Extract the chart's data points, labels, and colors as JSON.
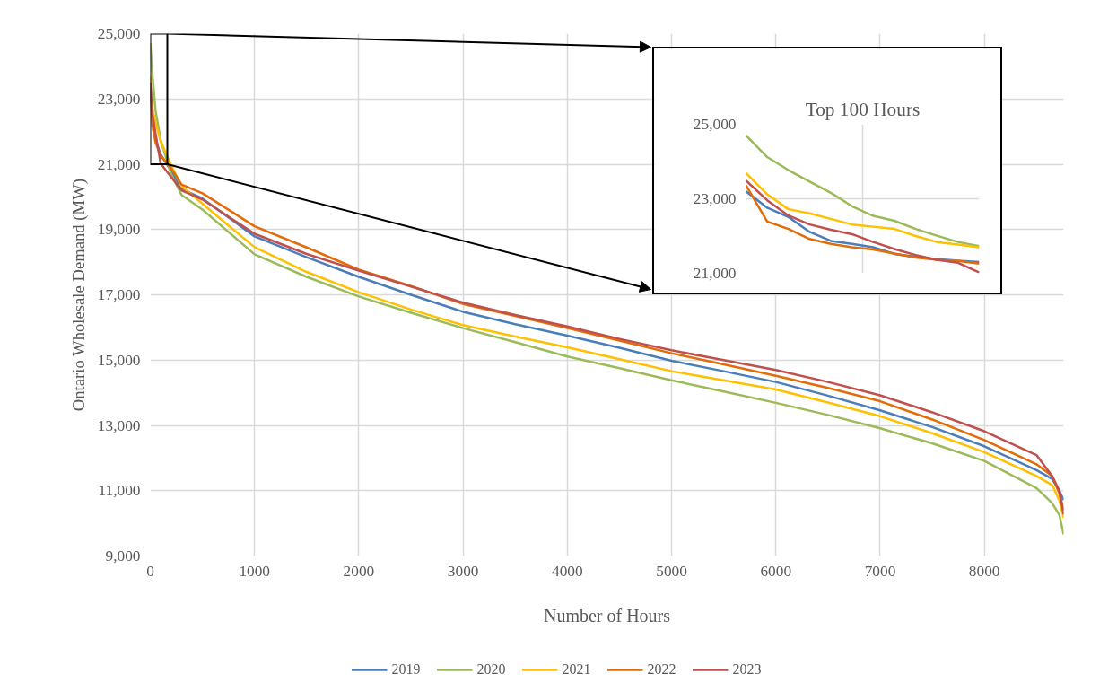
{
  "chart_data": [
    {
      "type": "line",
      "xlabel": "Number of Hours",
      "ylabel": "Ontario Wholesale Demand (MW)",
      "x": [
        0,
        20,
        50,
        100,
        200,
        300,
        500,
        1000,
        1500,
        2000,
        2500,
        3000,
        3500,
        4000,
        4500,
        5000,
        5500,
        6000,
        6500,
        7000,
        7500,
        8000,
        8500,
        8650,
        8720,
        8760
      ],
      "series": [
        {
          "name": "2019",
          "color": "#4a7ebb",
          "values": [
            23200,
            22510,
            21750,
            21300,
            20790,
            20240,
            19950,
            18790,
            18150,
            17550,
            17000,
            16480,
            16100,
            15750,
            15380,
            14980,
            14660,
            14330,
            13910,
            13460,
            12950,
            12360,
            11630,
            11360,
            10990,
            10710
          ]
        },
        {
          "name": "2020",
          "color": "#9bbb59",
          "values": [
            24700,
            23770,
            22650,
            21730,
            20700,
            20060,
            19610,
            18240,
            17550,
            16950,
            16450,
            15980,
            15550,
            15110,
            14750,
            14380,
            14040,
            13690,
            13320,
            12910,
            12450,
            11910,
            11080,
            10620,
            10250,
            9660
          ]
        },
        {
          "name": "2021",
          "color": "#ffc000",
          "values": [
            23700,
            22720,
            22280,
            21700,
            20970,
            20330,
            19790,
            18460,
            17700,
            17080,
            16550,
            16070,
            15720,
            15390,
            15030,
            14660,
            14380,
            14100,
            13700,
            13280,
            12760,
            12180,
            11450,
            11170,
            10700,
            10160
          ]
        },
        {
          "name": "2022",
          "color": "#e36c09",
          "values": [
            23300,
            22190,
            21670,
            21260,
            20880,
            20380,
            20110,
            19100,
            18450,
            17770,
            17270,
            16720,
            16350,
            15980,
            15600,
            15210,
            14870,
            14520,
            14150,
            13740,
            13180,
            12550,
            11810,
            11450,
            10900,
            10400
          ]
        },
        {
          "name": "2023",
          "color": "#c0504d",
          "values": [
            23500,
            22550,
            21950,
            21020,
            20610,
            20200,
            19920,
            18870,
            18250,
            17740,
            17250,
            16760,
            16380,
            16030,
            15650,
            15300,
            15000,
            14700,
            14330,
            13920,
            13400,
            12820,
            12090,
            11450,
            10990,
            10270
          ]
        }
      ],
      "xlim": [
        0,
        8760
      ],
      "xticks": [
        0,
        1000,
        2000,
        3000,
        4000,
        5000,
        6000,
        7000,
        8000
      ],
      "ylim": [
        9000,
        25000
      ],
      "yticks": [
        {
          "value": 9000,
          "label": "9,000"
        },
        {
          "value": 11000,
          "label": "11,000"
        },
        {
          "value": 13000,
          "label": "13,000"
        },
        {
          "value": 15000,
          "label": "15,000"
        },
        {
          "value": 17000,
          "label": "17,000"
        },
        {
          "value": 19000,
          "label": "19,000"
        },
        {
          "value": 21000,
          "label": "21,000"
        },
        {
          "value": 23000,
          "label": "23,000"
        },
        {
          "value": 25000,
          "label": "25,000"
        }
      ],
      "grid": true,
      "legend": "bottom",
      "line_style": "solid"
    },
    {
      "type": "line",
      "title": "Top 100 Hours",
      "categories": [
        null,
        null,
        null,
        null,
        null,
        null,
        null,
        null,
        null,
        null,
        null,
        null
      ],
      "series": [
        {
          "color": "#4a7ebb",
          "values": [
            23200,
            22760,
            22510,
            22110,
            21870,
            21790,
            21700,
            21520,
            21440,
            21380,
            21340,
            21300
          ]
        },
        {
          "color": "#9bbb59",
          "values": [
            24700,
            24120,
            23770,
            23460,
            23160,
            22800,
            22540,
            22410,
            22190,
            22010,
            21840,
            21730
          ]
        },
        {
          "color": "#ffc000",
          "values": [
            23690,
            23120,
            22720,
            22610,
            22460,
            22310,
            22250,
            22190,
            22000,
            21840,
            21770,
            21700
          ]
        },
        {
          "color": "#e36c09",
          "values": [
            23360,
            22390,
            22190,
            21920,
            21790,
            21700,
            21640,
            21530,
            21420,
            21360,
            21330,
            21260
          ]
        },
        {
          "color": "#c0504d",
          "values": [
            23490,
            22960,
            22550,
            22310,
            22170,
            22050,
            21840,
            21650,
            21490,
            21360,
            21280,
            21020
          ]
        }
      ],
      "ylim": [
        21000,
        25000
      ],
      "yticks": [
        {
          "value": 21000,
          "label": "21,000"
        },
        {
          "value": 23000,
          "label": "23,000"
        },
        {
          "value": 25000,
          "label": "25,000"
        }
      ],
      "grid": true,
      "line_style": "solid"
    }
  ]
}
